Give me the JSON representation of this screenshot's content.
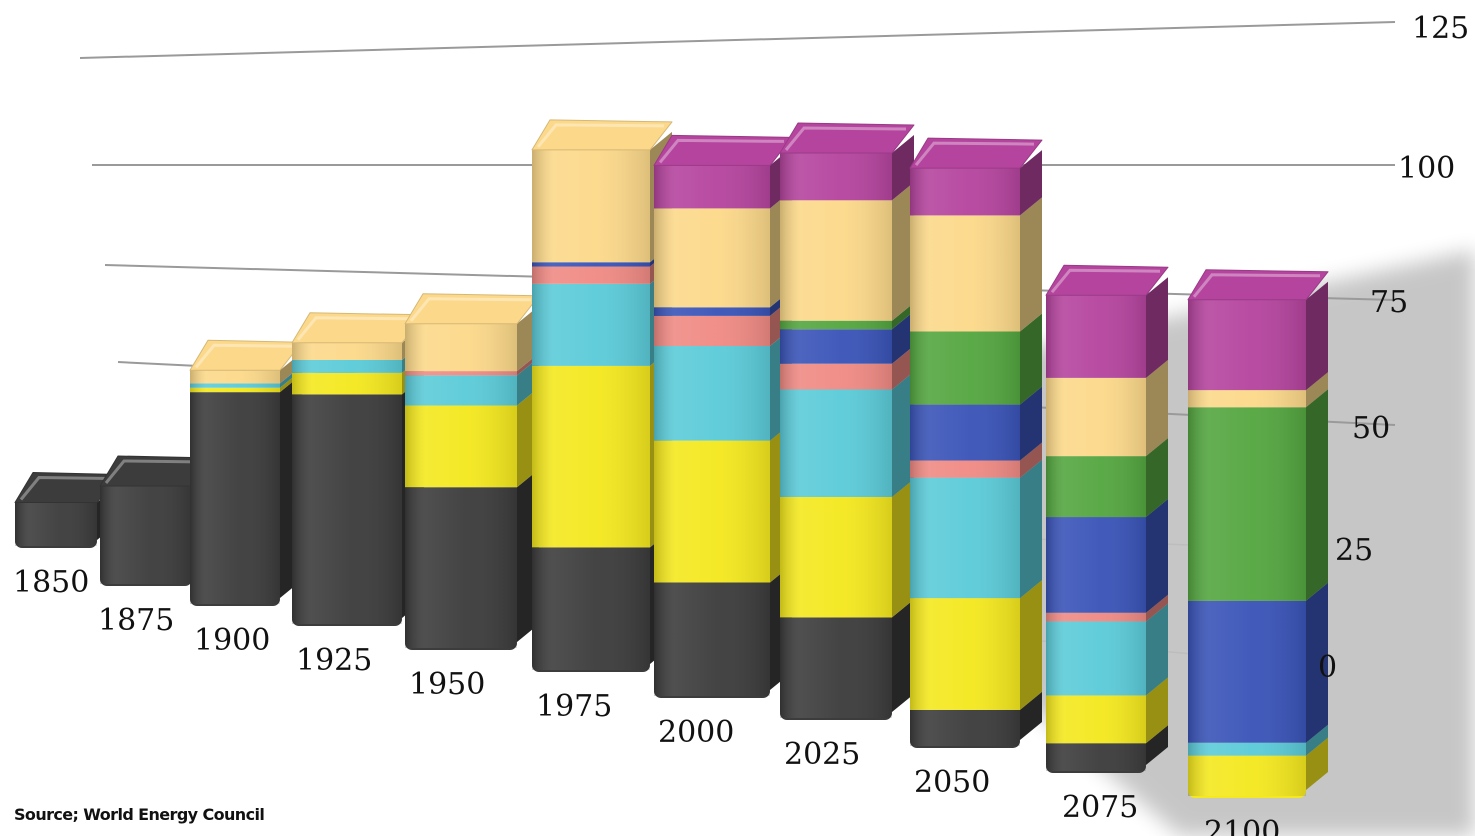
{
  "source_text": "Source; World Energy Council",
  "chart_data": {
    "type": "bar",
    "stacked": true,
    "categories": [
      "1850",
      "1875",
      "1900",
      "1925",
      "1950",
      "1975",
      "2000",
      "2025",
      "2050",
      "2075",
      "2100"
    ],
    "series": [
      {
        "color": "#3c3c3c",
        "values": [
          10,
          23,
          47,
          52,
          36,
          27,
          25,
          22,
          7,
          5,
          0
        ]
      },
      {
        "color": "#f4e81e",
        "values": [
          0,
          0,
          1,
          5,
          19,
          42,
          33,
          28,
          26,
          11,
          8
        ]
      },
      {
        "color": "#5bcbd8",
        "values": [
          0,
          0,
          1,
          3,
          7,
          19,
          22,
          25,
          28,
          17,
          3
        ]
      },
      {
        "color": "#f08a84",
        "values": [
          0,
          0,
          0,
          0,
          1,
          4,
          7,
          6,
          4,
          2,
          0
        ]
      },
      {
        "color": "#3a54b8",
        "values": [
          0,
          0,
          0,
          0,
          0,
          1,
          2,
          8,
          13,
          22,
          33
        ]
      },
      {
        "color": "#54a640",
        "values": [
          0,
          0,
          0,
          0,
          0,
          0,
          0,
          2,
          17,
          14,
          45
        ]
      },
      {
        "color": "#fcd98a",
        "values": [
          0,
          0,
          3,
          4,
          11,
          26,
          23,
          28,
          27,
          18,
          4
        ]
      },
      {
        "color": "#b5449e",
        "values": [
          0,
          0,
          0,
          0,
          0,
          0,
          10,
          11,
          11,
          19,
          21
        ]
      }
    ],
    "yticks": [
      "0",
      "25",
      "50",
      "75",
      "100",
      "125"
    ],
    "ylim": [
      0,
      125
    ]
  }
}
